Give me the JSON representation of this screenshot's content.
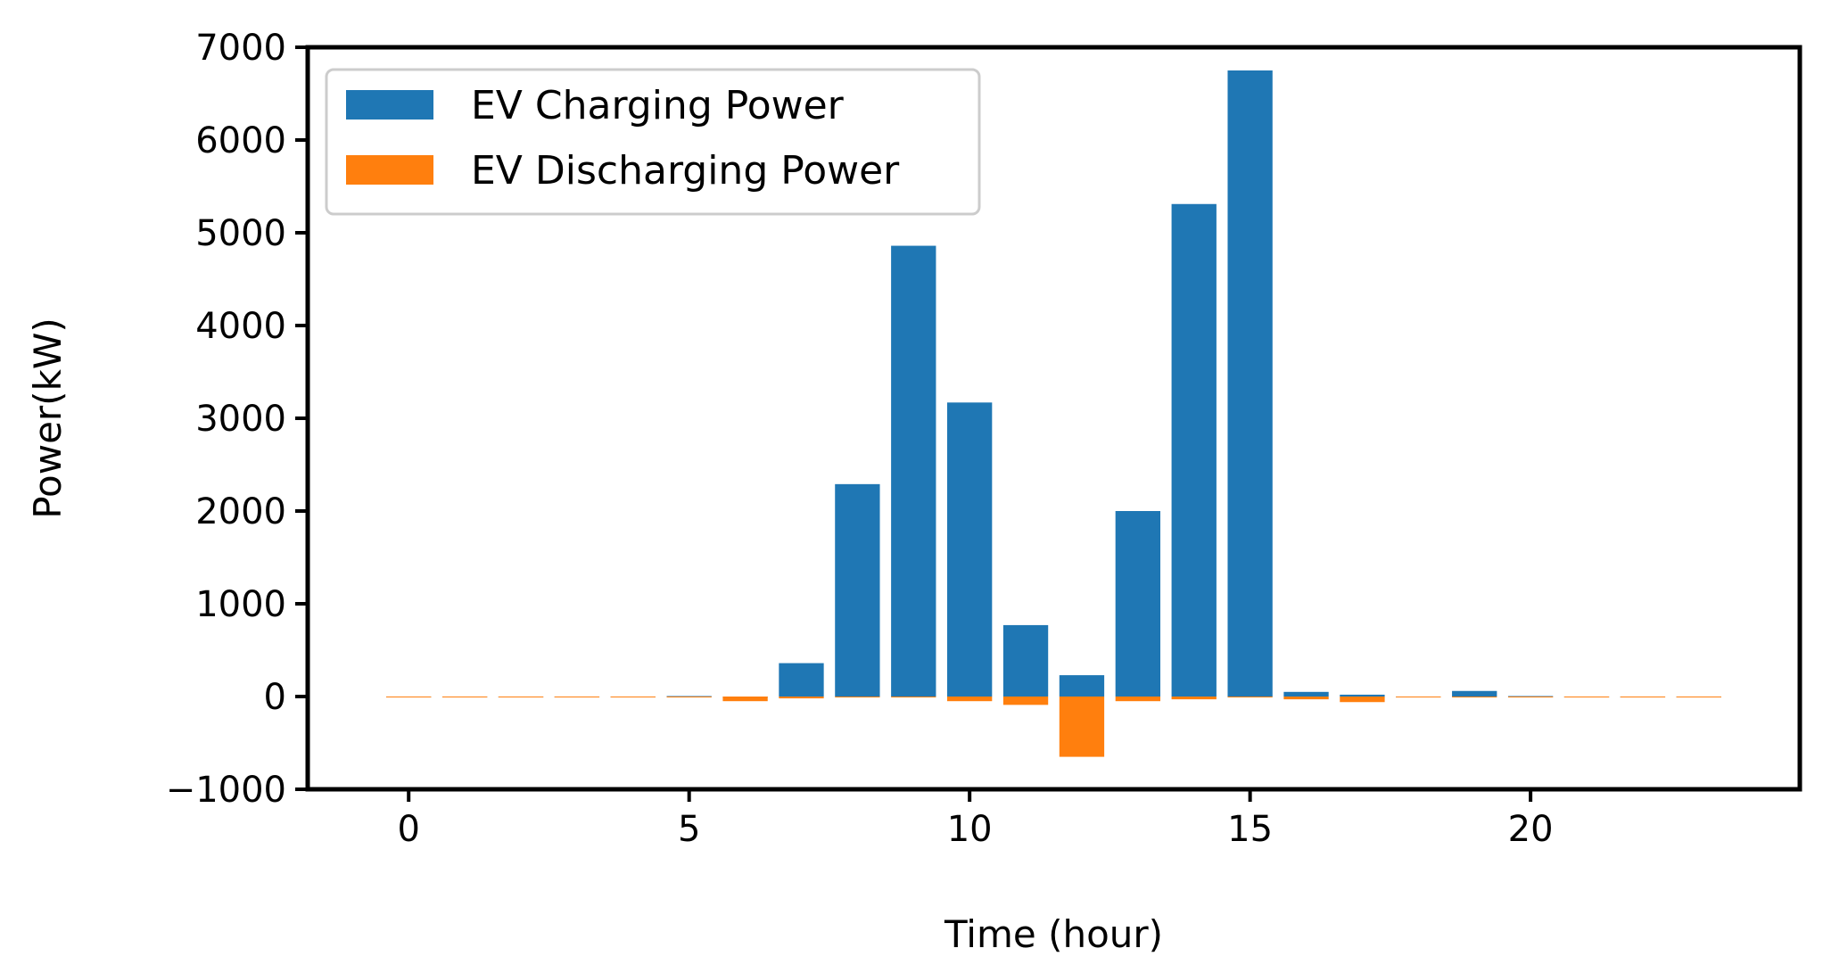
{
  "chart_data": {
    "type": "bar",
    "xlabel": "Time (hour)",
    "ylabel": "Power(kW)",
    "xlim": [
      -1.8,
      24.8
    ],
    "ylim": [
      -1000,
      7000
    ],
    "xticks": [
      0,
      5,
      10,
      15,
      20
    ],
    "xtick_labels": [
      "0",
      "5",
      "10",
      "15",
      "20"
    ],
    "yticks": [
      -1000,
      0,
      1000,
      2000,
      3000,
      4000,
      5000,
      6000,
      7000
    ],
    "ytick_labels": [
      "−1000",
      "0",
      "1000",
      "2000",
      "3000",
      "4000",
      "5000",
      "6000",
      "7000"
    ],
    "grid": false,
    "legend_position": "top-left",
    "x": [
      0,
      1,
      2,
      3,
      4,
      5,
      6,
      7,
      8,
      9,
      10,
      11,
      12,
      13,
      14,
      15,
      16,
      17,
      18,
      19,
      20,
      21,
      22,
      23
    ],
    "series": [
      {
        "name": "EV Charging Power",
        "color": "#1f77b4",
        "values": [
          0,
          0,
          0,
          0,
          0,
          5,
          0,
          360,
          2290,
          4860,
          3170,
          770,
          230,
          2000,
          5310,
          6750,
          50,
          20,
          0,
          60,
          5,
          0,
          0,
          0
        ]
      },
      {
        "name": "EV Discharging Power",
        "color": "#ff7f0e",
        "values": [
          -5,
          -5,
          -5,
          -5,
          -5,
          -5,
          -50,
          -20,
          0,
          0,
          -50,
          -90,
          -650,
          -50,
          -30,
          0,
          -30,
          -60,
          -5,
          0,
          0,
          -5,
          -5,
          -5
        ]
      }
    ]
  }
}
